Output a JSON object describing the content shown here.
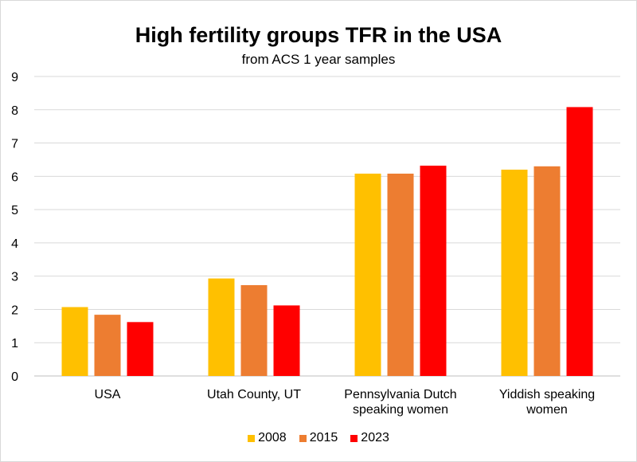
{
  "chart_data": {
    "type": "bar",
    "title": "High fertility groups TFR in the USA",
    "subtitle": "from ACS 1 year samples",
    "xlabel": "",
    "ylabel": "",
    "ylim": [
      0,
      9
    ],
    "yticks": [
      0,
      1,
      2,
      3,
      4,
      5,
      6,
      7,
      8,
      9
    ],
    "grid": true,
    "legend_position": "bottom",
    "categories": [
      [
        "USA"
      ],
      [
        "Utah County, UT"
      ],
      [
        "Pennsylvania Dutch",
        "speaking women"
      ],
      [
        "Yiddish speaking",
        "women"
      ]
    ],
    "series": [
      {
        "name": "2008",
        "color": "#FFC000",
        "values": [
          2.07,
          2.93,
          6.08,
          6.2
        ]
      },
      {
        "name": "2015",
        "color": "#ED7D31",
        "values": [
          1.84,
          2.73,
          6.08,
          6.3
        ]
      },
      {
        "name": "2023",
        "color": "#FF0000",
        "values": [
          1.62,
          2.12,
          6.32,
          8.08
        ]
      }
    ]
  }
}
